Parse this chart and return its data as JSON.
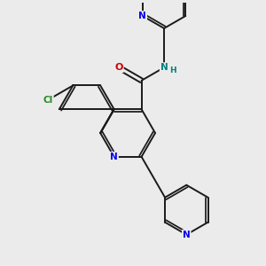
{
  "bg_color": "#ebebeb",
  "bond_color": "#1a1a1a",
  "N_color": "#0000ee",
  "O_color": "#cc0000",
  "Cl_color": "#228b22",
  "NH_color": "#008080",
  "bond_width": 1.4,
  "figsize": [
    3.0,
    3.0
  ],
  "dpi": 100,
  "xlim": [
    0,
    10
  ],
  "ylim": [
    0,
    10
  ]
}
